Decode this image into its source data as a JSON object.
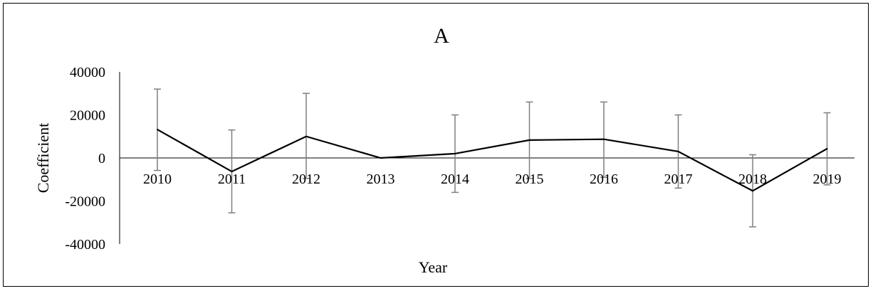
{
  "chart_data": {
    "type": "line",
    "title": "A",
    "xlabel": "Year",
    "ylabel": "Coefficient",
    "categories": [
      "2010",
      "2011",
      "2012",
      "2013",
      "2014",
      "2015",
      "2016",
      "2017",
      "2018",
      "2019"
    ],
    "series": [
      {
        "values": [
          13200,
          -6300,
          10000,
          0,
          2000,
          8300,
          8700,
          3000,
          -15300,
          4300
        ],
        "error_low": [
          -5800,
          -25500,
          -9500,
          null,
          -16000,
          -9500,
          -9000,
          -14000,
          -32000,
          -12500
        ],
        "error_high": [
          32000,
          13000,
          30000,
          null,
          20000,
          26000,
          26000,
          20000,
          1500,
          21000
        ]
      }
    ],
    "ylim": [
      -40000,
      40000
    ],
    "yticks": [
      -40000,
      -20000,
      0,
      20000,
      40000
    ],
    "grid": false,
    "colors": {
      "line": "#000000",
      "error_bar": "#7f7f7f"
    }
  }
}
